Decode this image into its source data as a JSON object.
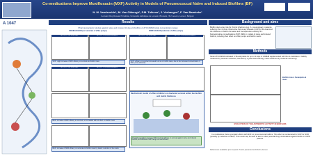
{
  "header": {
    "title": "Co-medications Improve Moxifloxacin (MXF) Activity in Models of Pneumococcal Naïve and Induced Biofilms (BF)",
    "authors": "N. M. Vandevelde¹, M. Van Obbergh¹, P.M. Tulkens¹, J. Verhaegen², F. Van Bambeke¹",
    "affiliation": "¹Louvain Drug Research Institute, Université catholique de Louvain, Brussels, ²KU Leuven, Leuven, Belgium",
    "code": "A 1047"
  },
  "results": {
    "heading": "Results",
    "intro": "Pharmacodynamic studies against naïve and induced 11 day-old biofilms of ATCC49619 (wide concentration range)",
    "left_label": "MOXIFLOXACIN (not substrate of efflux pumps)",
    "right_label": "NORFLOXACIN (substrate of efflux pumps)",
    "panel_titles": [
      "ACTIVITY ON SURVIVAL",
      "ACTIVITY ON BIOFILM MASS",
      "ACTIVITY ON SURVIVAL",
      "ACTIVITY ON BIOFILM MASS"
    ],
    "notes": [
      "SOP : slight increase of MXF efficacy on survival and biofilm mass",
      "SOP : efficacy on survival increased but not on biofilm mass, due to the increased concentration of efflux pump substrate",
      "RES : increase of MXF efficacy on survival, not correlated with an effect on biofilm mass",
      "RES : increase of NOR efficacy on survival and biofilm mass by drastic reduction of the matrix"
    ],
    "model_title": "Mechanistic model of efflux inhibitors on bacterial survival within the biofilm and matrix thickness",
    "model_note": "All supplementations increase MXF maximal efficacy on survival against naïve and induced biofilms, with RES and SOP being the most efficient"
  },
  "background": {
    "heading": "Background and aims",
    "text": "Biofilm plays a key role for chronic infections (e.g. S. pneumoniae) in patients suffering from Chronic Obstructive Pulmonary Disease (COPD). We examined the influence on biofilm formation and fluoroquinolone activity of 2 fluoroquinolone co-medications (SOP, RES) in models of naïve and induced biofilms, including their effect on efflux pumps and biofilm matrix."
  },
  "methods": {
    "heading": "Methods",
    "text": "Strain ATCC49619 cultivated in 96-well plates for up to 11 days in CAMHB supplemented with the co-medication. Viability measured by resazurin reduction; biomass by crystal violet staining; matrix thickness by confocal microscopy.",
    "subheading": "EVOLUTION OF THE ANTIBIOTIC ACTIVITY IN BIOFILMS",
    "side_note": "Biofilm mass: 8 examples & mass"
  },
  "conclusions": {
    "heading": "Conclusions",
    "text": "Co-medications show synergistic effects with MXF on pneumococcal biofilms. This effect is counteracted for SOP for NOR (possibly by induction of efflux). This model may be used to test for other potential drug combinations against biofilm in COPD patients."
  },
  "references": "References available upon request. Poster presented at ICAAC, Denver."
}
